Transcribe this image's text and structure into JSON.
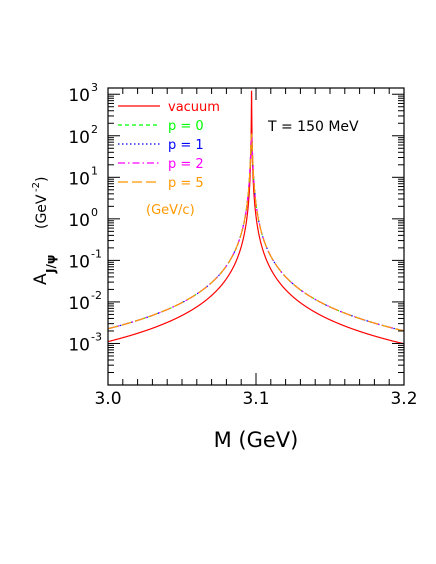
{
  "chart_data": {
    "type": "line",
    "xlabel": "M  (GeV)",
    "ylabel": "A",
    "ylabel_subscript": "J/ψ",
    "ylabel_unit": "(GeV",
    "ylabel_unit_exp": "-2",
    "ylabel_unit_close": ")",
    "xlim": [
      3.0,
      3.2
    ],
    "ylog": true,
    "ylim_log10": [
      -4,
      3.15
    ],
    "x_ticks": [
      {
        "value": 3.0,
        "label": "3.0"
      },
      {
        "value": 3.1,
        "label": "3.1"
      },
      {
        "value": 3.2,
        "label": "3.2"
      }
    ],
    "y_ticks": [
      {
        "exp": 3,
        "label": "10",
        "sup": "3"
      },
      {
        "exp": 2,
        "label": "10",
        "sup": "2"
      },
      {
        "exp": 1,
        "label": "10",
        "sup": "1"
      },
      {
        "exp": 0,
        "label": "10",
        "sup": "0"
      },
      {
        "exp": -1,
        "label": "10",
        "sup": "-1"
      },
      {
        "exp": -2,
        "label": "10",
        "sup": "-2"
      },
      {
        "exp": -3,
        "label": "10",
        "sup": "-3"
      }
    ],
    "annotation": "T  =  150  MeV",
    "legend_position": "top-left",
    "legend_unit": "(GeV/c)",
    "series": [
      {
        "name": "vacuum",
        "color": "#ff0000",
        "dash": "",
        "x0": 3.097,
        "gamma": 9.32e-05,
        "height": 1200
      },
      {
        "name": "p  =  0",
        "color": "#00ff00",
        "dash": "4,3",
        "x0": 3.097,
        "gamma": 0.00044,
        "height": 110
      },
      {
        "name": "p  =  1",
        "color": "#0000ff",
        "dash": "1.5,2.5",
        "x0": 3.097,
        "gamma": 0.00044,
        "height": 110
      },
      {
        "name": "p  =  2",
        "color": "#ff00ff",
        "dash": "7,3,1.5,3",
        "x0": 3.097,
        "gamma": 0.00044,
        "height": 110
      },
      {
        "name": "p  =  5",
        "color": "#ff9900",
        "dash": "10,4",
        "x0": 3.097,
        "gamma": 0.00044,
        "height": 110
      }
    ]
  }
}
